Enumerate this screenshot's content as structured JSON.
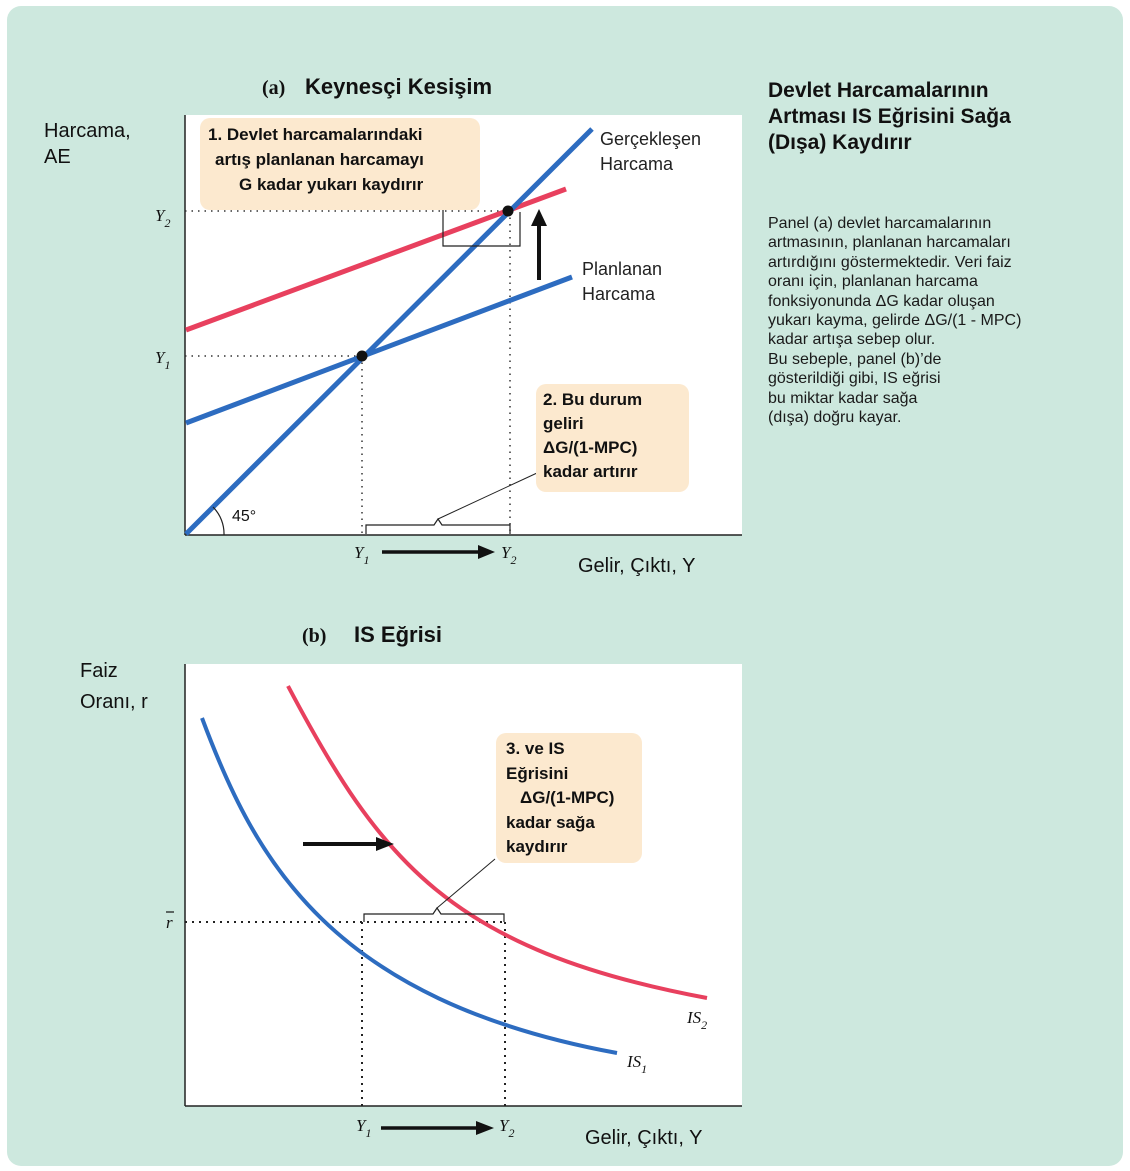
{
  "colors": {
    "background": "#cde8de",
    "plot_bg": "#ffffff",
    "blue": "#2d6cc0",
    "red": "#e8405e",
    "callout": "#fce9cf"
  },
  "caption": {
    "title_lines": [
      "Devlet Harcamalarının",
      "Artması IS Eğrisini Sağa",
      "(Dışa) Kaydırır"
    ],
    "body_lines": [
      "Panel (a) devlet harcamalarının",
      "artmasının, planlanan harcamaları",
      "artırdığını göstermektedir. Veri faiz",
      "oranı için, planlanan harcama",
      "fonksiyonunda ΔG kadar oluşan",
      "yukarı kayma, gelirde ΔG/(1 - MPC)",
      "kadar artışa sebep olur.",
      "Bu sebeple, panel (b)’de",
      "gösterildiği gibi, IS eğrisi",
      "bu miktar kadar sağa",
      "(dışa) doğru kayar."
    ]
  },
  "panel_a": {
    "label": "(a)",
    "title": "Keynesçi Kesişim",
    "y_axis_label_lines": [
      "Harcama,",
      "AE"
    ],
    "x_axis_label": "Gelir, Çıktı, Y",
    "actual_line_label_lines": [
      "Gerçekleşen",
      "Harcama"
    ],
    "planned_line_label_lines": [
      "Planlanan",
      "Harcama"
    ],
    "angle_label": "45°",
    "y_ticks": [
      {
        "main": "Y",
        "sub": "2"
      },
      {
        "main": "Y",
        "sub": "1"
      }
    ],
    "x_ticks": [
      {
        "main": "Y",
        "sub": "1"
      },
      {
        "main": "Y",
        "sub": "2"
      }
    ],
    "callout_1_lines": [
      "1. Devlet harcamalarındaki",
      "artış planlanan harcamayı",
      "G kadar yukarı kaydırır"
    ],
    "callout_2_lines": [
      "2. Bu durum",
      "geliri",
      "ΔG/(1-MPC)",
      "kadar artırır"
    ]
  },
  "panel_b": {
    "label": "(b)",
    "title": "IS Eğrisi",
    "y_axis_label_lines": [
      "Faiz",
      "Oranı, r"
    ],
    "x_axis_label": "Gelir, Çıktı, Y",
    "r_tick": "r",
    "x_ticks": [
      {
        "main": "Y",
        "sub": "1"
      },
      {
        "main": "Y",
        "sub": "2"
      }
    ],
    "curve_labels": [
      {
        "main": "IS",
        "sub": "1"
      },
      {
        "main": "IS",
        "sub": "2"
      }
    ],
    "callout_3_lines": [
      "3. ve IS",
      "Eğrisini",
      "ΔG/(1-MPC)",
      "kadar sağa",
      "kaydırır"
    ]
  }
}
